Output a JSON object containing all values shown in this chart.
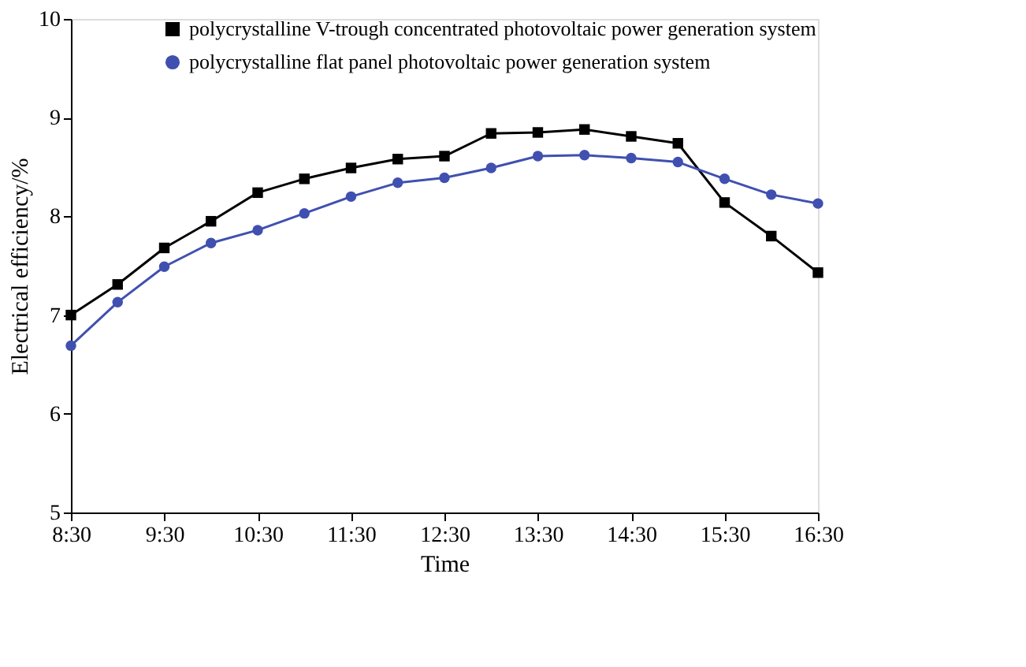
{
  "chart_data": {
    "type": "line",
    "xlabel": "Time",
    "ylabel": "Electrical efficiency/%",
    "x": [
      8.5,
      9,
      9.5,
      10,
      10.5,
      11,
      11.5,
      12,
      12.5,
      13,
      13.5,
      14,
      14.5,
      15,
      15.5,
      16,
      16.5
    ],
    "xlim": [
      8.5,
      16.5
    ],
    "xticks": [
      {
        "value": 8.5,
        "label": "8:30"
      },
      {
        "value": 9.5,
        "label": "9:30"
      },
      {
        "value": 10.5,
        "label": "10:30"
      },
      {
        "value": 11.5,
        "label": "11:30"
      },
      {
        "value": 12.5,
        "label": "12:30"
      },
      {
        "value": 13.5,
        "label": "13:30"
      },
      {
        "value": 14.5,
        "label": "14:30"
      },
      {
        "value": 15.5,
        "label": "15:30"
      },
      {
        "value": 16.5,
        "label": "16:30"
      }
    ],
    "ylim": [
      5,
      10
    ],
    "yticks": [
      5,
      6,
      7,
      8,
      9,
      10
    ],
    "grid": false,
    "legend": "top right",
    "line_style": "solid",
    "series": [
      {
        "name": "polycrystalline V-trough concentrated photovoltaic power generation system",
        "color": "#000000",
        "marker": "square",
        "values": [
          7.0,
          7.31,
          7.68,
          7.95,
          8.24,
          8.38,
          8.49,
          8.58,
          8.61,
          8.84,
          8.85,
          8.88,
          8.81,
          8.74,
          8.14,
          7.8,
          7.43
        ]
      },
      {
        "name": "polycrystalline flat panel photovoltaic power generation system",
        "color": "#4050b0",
        "marker": "circle",
        "values": [
          6.69,
          7.13,
          7.49,
          7.73,
          7.86,
          8.03,
          8.2,
          8.34,
          8.39,
          8.49,
          8.61,
          8.62,
          8.59,
          8.55,
          8.38,
          8.22,
          8.13
        ]
      }
    ]
  }
}
